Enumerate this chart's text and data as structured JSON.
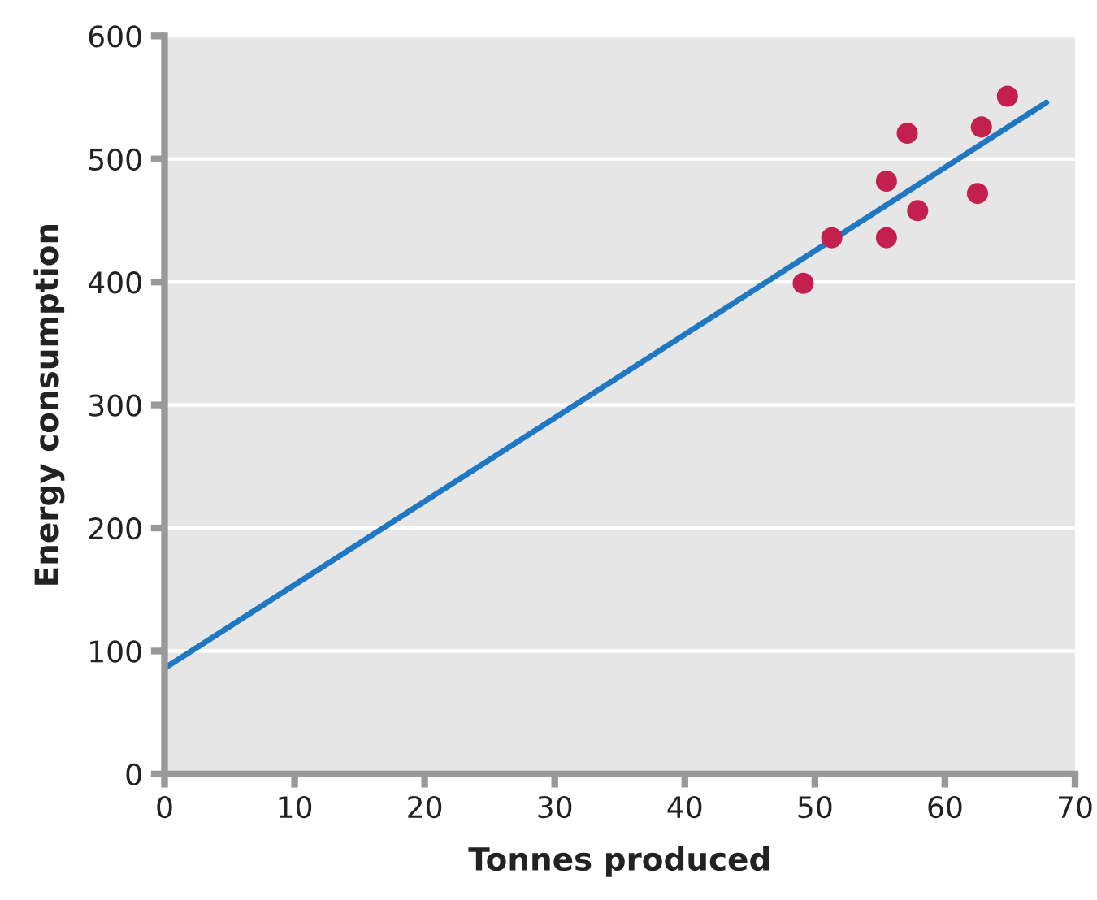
{
  "chart_data": {
    "type": "scatter",
    "xlabel": "Tonnes produced",
    "ylabel": "Energy consumption",
    "xlim": [
      0,
      70
    ],
    "ylim": [
      0,
      600
    ],
    "xticks": [
      0,
      10,
      20,
      30,
      40,
      50,
      60,
      70
    ],
    "yticks": [
      0,
      100,
      200,
      300,
      400,
      500,
      600
    ],
    "grid": "y",
    "series": [
      {
        "color": "#c4204f",
        "marker": "circle",
        "x": [
          49.1,
          51.3,
          55.5,
          55.5,
          57.1,
          57.9,
          62.5,
          62.8,
          64.8
        ],
        "values": [
          399,
          436,
          482,
          436,
          521,
          458,
          472,
          526,
          551
        ]
      },
      {
        "type": "line",
        "color": "#1f78c1",
        "marker": "none",
        "x": [
          0,
          67.8
        ],
        "values": [
          86,
          546
        ]
      }
    ]
  }
}
